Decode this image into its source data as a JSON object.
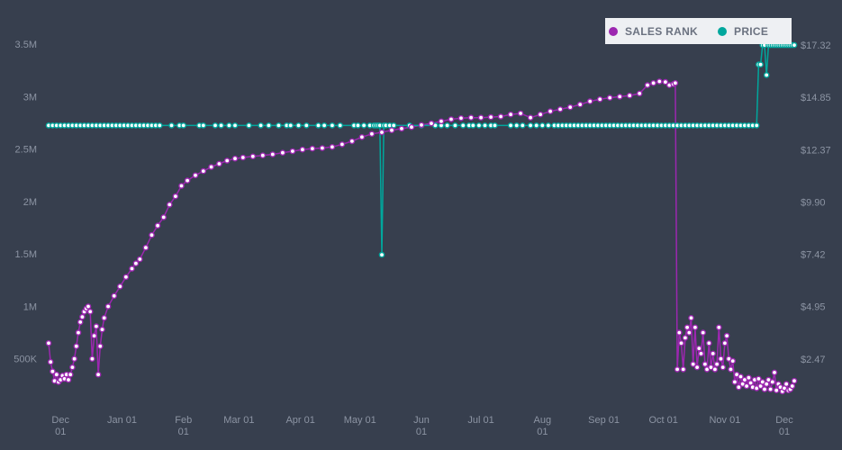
{
  "chart_data": {
    "type": "line",
    "title": "",
    "xlabel": "",
    "ylabel": "",
    "legend": {
      "placement": "top-right"
    },
    "grid": false,
    "colors": {
      "background": "#373f4e",
      "sales_rank": "#9c27b0",
      "price": "#00a79d",
      "marker_fill": "#ffffff"
    },
    "x_ticks": [
      {
        "day": 0,
        "line1": "Dec",
        "line2": "01"
      },
      {
        "day": 31,
        "line1": "Jan 01",
        "line2": ""
      },
      {
        "day": 62,
        "line1": "Feb",
        "line2": "01"
      },
      {
        "day": 90,
        "line1": "Mar 01",
        "line2": ""
      },
      {
        "day": 121,
        "line1": "Apr 01",
        "line2": ""
      },
      {
        "day": 151,
        "line1": "May 01",
        "line2": ""
      },
      {
        "day": 182,
        "line1": "Jun",
        "line2": "01"
      },
      {
        "day": 212,
        "line1": "Jul 01",
        "line2": ""
      },
      {
        "day": 243,
        "line1": "Aug",
        "line2": "01"
      },
      {
        "day": 274,
        "line1": "Sep 01",
        "line2": ""
      },
      {
        "day": 304,
        "line1": "Oct 01",
        "line2": ""
      },
      {
        "day": 335,
        "line1": "Nov 01",
        "line2": ""
      },
      {
        "day": 365,
        "line1": "Dec",
        "line2": "01"
      }
    ],
    "x_range": [
      -6,
      370
    ],
    "y_left": {
      "range": [
        0,
        3750000
      ],
      "ticks": [
        {
          "value": 500000,
          "label": "500K"
        },
        {
          "value": 1000000,
          "label": "1M"
        },
        {
          "value": 1500000,
          "label": "1.5M"
        },
        {
          "value": 2000000,
          "label": "2M"
        },
        {
          "value": 2500000,
          "label": "2.5M"
        },
        {
          "value": 3000000,
          "label": "3M"
        },
        {
          "value": 3500000,
          "label": "3.5M"
        }
      ]
    },
    "y_right": {
      "range": [
        0.0,
        18.6
      ],
      "ticks": [
        {
          "value": 2.47,
          "label": "$2.47"
        },
        {
          "value": 4.95,
          "label": "$4.95"
        },
        {
          "value": 7.42,
          "label": "$7.42"
        },
        {
          "value": 9.9,
          "label": "$9.90"
        },
        {
          "value": 12.37,
          "label": "$12.37"
        },
        {
          "value": 14.85,
          "label": "$14.85"
        },
        {
          "value": 17.32,
          "label": "$17.32"
        }
      ]
    },
    "series": [
      {
        "name": "SALES RANK",
        "axis": "left",
        "points": [
          [
            -6,
            650000
          ],
          [
            -5,
            470000
          ],
          [
            -4,
            380000
          ],
          [
            -3,
            290000
          ],
          [
            -2,
            350000
          ],
          [
            -1,
            280000
          ],
          [
            0,
            300000
          ],
          [
            1,
            340000
          ],
          [
            2,
            310000
          ],
          [
            3,
            350000
          ],
          [
            4,
            300000
          ],
          [
            5,
            350000
          ],
          [
            6,
            420000
          ],
          [
            7,
            500000
          ],
          [
            8,
            620000
          ],
          [
            9,
            750000
          ],
          [
            10,
            850000
          ],
          [
            11,
            900000
          ],
          [
            12,
            950000
          ],
          [
            13,
            980000
          ],
          [
            14,
            1000000
          ],
          [
            15,
            950000
          ],
          [
            16,
            500000
          ],
          [
            17,
            720000
          ],
          [
            18,
            810000
          ],
          [
            19,
            350000
          ],
          [
            20,
            620000
          ],
          [
            21,
            780000
          ],
          [
            22,
            890000
          ],
          [
            24,
            1000000
          ],
          [
            27,
            1100000
          ],
          [
            30,
            1190000
          ],
          [
            33,
            1280000
          ],
          [
            36,
            1360000
          ],
          [
            38,
            1410000
          ],
          [
            40,
            1450000
          ],
          [
            43,
            1560000
          ],
          [
            46,
            1680000
          ],
          [
            49,
            1770000
          ],
          [
            52,
            1850000
          ],
          [
            55,
            1970000
          ],
          [
            58,
            2050000
          ],
          [
            61,
            2150000
          ],
          [
            64,
            2200000
          ],
          [
            68,
            2250000
          ],
          [
            72,
            2290000
          ],
          [
            76,
            2330000
          ],
          [
            80,
            2360000
          ],
          [
            84,
            2390000
          ],
          [
            88,
            2410000
          ],
          [
            92,
            2420000
          ],
          [
            97,
            2430000
          ],
          [
            102,
            2440000
          ],
          [
            107,
            2450000
          ],
          [
            112,
            2465000
          ],
          [
            117,
            2480000
          ],
          [
            122,
            2495000
          ],
          [
            127,
            2505000
          ],
          [
            132,
            2510000
          ],
          [
            137,
            2520000
          ],
          [
            142,
            2545000
          ],
          [
            147,
            2575000
          ],
          [
            152,
            2615000
          ],
          [
            157,
            2645000
          ],
          [
            162,
            2660000
          ],
          [
            167,
            2680000
          ],
          [
            172,
            2695000
          ],
          [
            177,
            2710000
          ],
          [
            182,
            2730000
          ],
          [
            187,
            2745000
          ],
          [
            192,
            2765000
          ],
          [
            197,
            2785000
          ],
          [
            202,
            2795000
          ],
          [
            207,
            2800000
          ],
          [
            212,
            2800000
          ],
          [
            217,
            2805000
          ],
          [
            222,
            2810000
          ],
          [
            227,
            2830000
          ],
          [
            232,
            2840000
          ],
          [
            237,
            2800000
          ],
          [
            242,
            2830000
          ],
          [
            247,
            2860000
          ],
          [
            252,
            2880000
          ],
          [
            257,
            2900000
          ],
          [
            262,
            2925000
          ],
          [
            267,
            2955000
          ],
          [
            272,
            2975000
          ],
          [
            277,
            2990000
          ],
          [
            282,
            3000000
          ],
          [
            287,
            3010000
          ],
          [
            292,
            3030000
          ],
          [
            296,
            3110000
          ],
          [
            299,
            3130000
          ],
          [
            302,
            3145000
          ],
          [
            305,
            3140000
          ],
          [
            307,
            3110000
          ],
          [
            309,
            3120000
          ],
          [
            310,
            3130000
          ],
          [
            311,
            400000
          ],
          [
            312,
            750000
          ],
          [
            313,
            650000
          ],
          [
            314,
            400000
          ],
          [
            315,
            700000
          ],
          [
            316,
            800000
          ],
          [
            317,
            750000
          ],
          [
            318,
            890000
          ],
          [
            319,
            450000
          ],
          [
            320,
            800000
          ],
          [
            321,
            420000
          ],
          [
            322,
            600000
          ],
          [
            323,
            550000
          ],
          [
            324,
            750000
          ],
          [
            325,
            450000
          ],
          [
            326,
            400000
          ],
          [
            327,
            650000
          ],
          [
            328,
            420000
          ],
          [
            329,
            550000
          ],
          [
            330,
            400000
          ],
          [
            331,
            450000
          ],
          [
            332,
            800000
          ],
          [
            333,
            500000
          ],
          [
            334,
            420000
          ],
          [
            335,
            650000
          ],
          [
            336,
            720000
          ],
          [
            337,
            500000
          ],
          [
            338,
            400000
          ],
          [
            339,
            480000
          ],
          [
            340,
            280000
          ],
          [
            341,
            350000
          ],
          [
            342,
            230000
          ],
          [
            343,
            330000
          ],
          [
            344,
            260000
          ],
          [
            345,
            300000
          ],
          [
            346,
            240000
          ],
          [
            347,
            320000
          ],
          [
            348,
            270000
          ],
          [
            349,
            230000
          ],
          [
            350,
            300000
          ],
          [
            351,
            220000
          ],
          [
            352,
            310000
          ],
          [
            353,
            240000
          ],
          [
            354,
            280000
          ],
          [
            355,
            210000
          ],
          [
            356,
            260000
          ],
          [
            357,
            300000
          ],
          [
            358,
            210000
          ],
          [
            359,
            280000
          ],
          [
            360,
            370000
          ],
          [
            361,
            200000
          ],
          [
            362,
            260000
          ],
          [
            363,
            230000
          ],
          [
            364,
            190000
          ],
          [
            365,
            220000
          ],
          [
            366,
            260000
          ],
          [
            367,
            200000
          ],
          [
            368,
            210000
          ],
          [
            369,
            240000
          ],
          [
            370,
            290000
          ]
        ]
      },
      {
        "name": "PRICE",
        "axis": "right",
        "steps": [
          [
            -6,
            13.52
          ],
          [
            161,
            13.52
          ],
          [
            162,
            7.4
          ],
          [
            163,
            13.52
          ],
          [
            351,
            13.52
          ],
          [
            352,
            16.4
          ],
          [
            353,
            16.4
          ],
          [
            354,
            17.32
          ],
          [
            355,
            17.32
          ],
          [
            356,
            15.9
          ],
          [
            357,
            17.32
          ],
          [
            370,
            17.32
          ]
        ],
        "marker_days": [
          -6,
          -4,
          -2,
          0,
          2,
          4,
          6,
          8,
          10,
          12,
          14,
          16,
          18,
          20,
          22,
          24,
          26,
          28,
          30,
          32,
          34,
          36,
          38,
          40,
          42,
          44,
          46,
          48,
          50,
          56,
          60,
          62,
          70,
          72,
          78,
          81,
          85,
          88,
          95,
          101,
          105,
          110,
          114,
          116,
          120,
          124,
          130,
          133,
          137,
          141,
          148,
          150,
          153,
          156,
          158,
          159,
          160,
          161,
          162,
          163,
          164,
          166,
          168,
          176,
          182,
          189,
          192,
          195,
          199,
          203,
          206,
          208,
          211,
          214,
          217,
          219,
          227,
          230,
          233,
          237,
          240,
          243,
          246,
          249,
          251,
          253,
          255,
          257,
          259,
          261,
          263,
          265,
          267,
          269,
          271,
          273,
          275,
          277,
          279,
          281,
          283,
          285,
          287,
          289,
          291,
          293,
          295,
          297,
          299,
          301,
          303,
          305,
          307,
          309,
          311,
          313,
          315,
          317,
          319,
          321,
          323,
          325,
          327,
          329,
          331,
          333,
          335,
          337,
          339,
          341,
          343,
          345,
          347,
          349,
          351,
          352,
          353,
          354,
          355,
          356,
          357,
          358,
          359,
          360,
          361,
          362,
          363,
          364,
          365,
          366,
          367,
          368,
          369,
          370
        ]
      }
    ]
  }
}
